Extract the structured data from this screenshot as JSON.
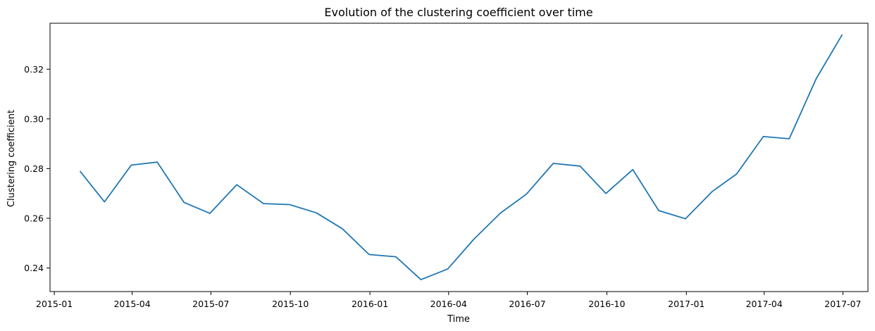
{
  "chart_data": {
    "type": "line",
    "title": "Evolution of the clustering coefficient over time",
    "xlabel": "Time",
    "ylabel": "Clustering coefficient",
    "grid": false,
    "colors": {
      "line": "#1f77b4"
    },
    "xlim": [
      "2014-12-27",
      "2017-07-30"
    ],
    "ylim": [
      0.2305,
      0.3385
    ],
    "x_ticks": [
      "2015-01",
      "2015-04",
      "2015-07",
      "2015-10",
      "2016-01",
      "2016-04",
      "2016-07",
      "2016-10",
      "2017-01",
      "2017-04",
      "2017-07"
    ],
    "y_ticks": [
      "0.24",
      "0.26",
      "0.28",
      "0.30",
      "0.32"
    ],
    "series": [
      {
        "x": [
          "2015-01-31",
          "2015-02-28",
          "2015-03-31",
          "2015-04-30",
          "2015-05-31",
          "2015-06-30",
          "2015-07-31",
          "2015-08-31",
          "2015-09-30",
          "2015-10-31",
          "2015-11-30",
          "2015-12-31",
          "2016-01-31",
          "2016-02-29",
          "2016-03-31",
          "2016-04-30",
          "2016-05-31",
          "2016-06-30",
          "2016-07-31",
          "2016-08-31",
          "2016-09-30",
          "2016-10-31",
          "2016-11-30",
          "2016-12-31",
          "2017-01-31",
          "2017-02-28",
          "2017-03-31",
          "2017-04-30",
          "2017-05-31",
          "2017-06-30"
        ],
        "values": [
          0.2788,
          0.2666,
          0.2814,
          0.2826,
          0.2664,
          0.262,
          0.2735,
          0.2659,
          0.2655,
          0.2622,
          0.2558,
          0.2454,
          0.2445,
          0.2353,
          0.2396,
          0.2515,
          0.2621,
          0.2697,
          0.2821,
          0.281,
          0.27,
          0.2796,
          0.2631,
          0.2598,
          0.2708,
          0.2778,
          0.2929,
          0.292,
          0.3161,
          0.3338
        ]
      }
    ]
  }
}
